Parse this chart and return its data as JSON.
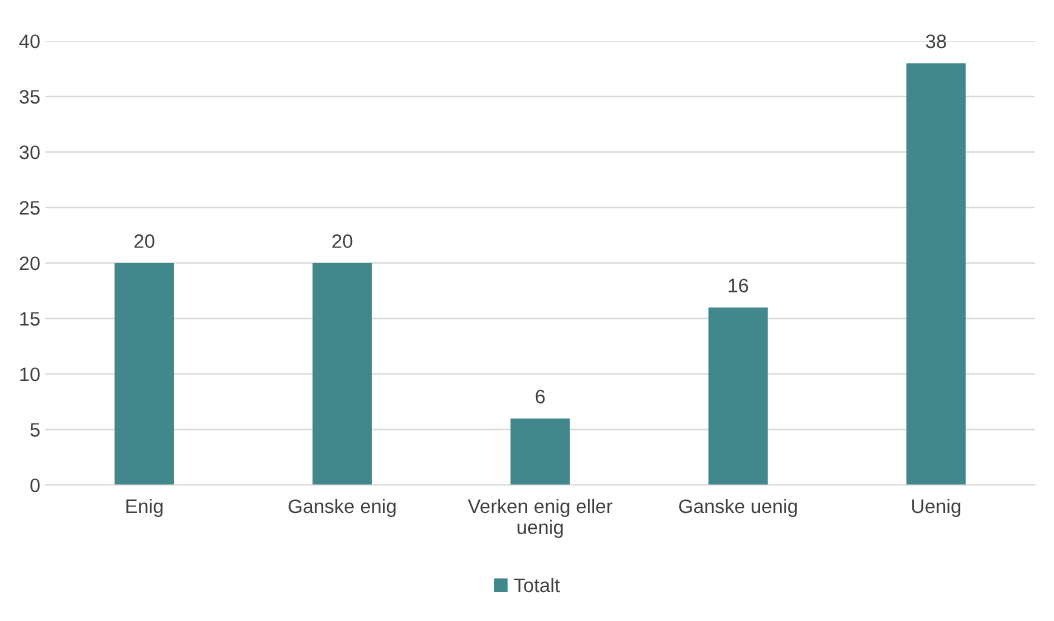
{
  "chart_data": {
    "type": "bar",
    "categories": [
      "Enig",
      "Ganske enig",
      "Verken enig eller\nuenig",
      "Ganske uenig",
      "Uenig"
    ],
    "series": [
      {
        "name": "Totalt",
        "color": "#40888c",
        "values": [
          20,
          20,
          6,
          16,
          38
        ]
      }
    ],
    "ylim": [
      0,
      40
    ],
    "yticks": [
      0,
      5,
      10,
      15,
      20,
      25,
      30,
      35,
      40
    ],
    "grid": "y",
    "legend": "bottom",
    "data_labels": true
  }
}
